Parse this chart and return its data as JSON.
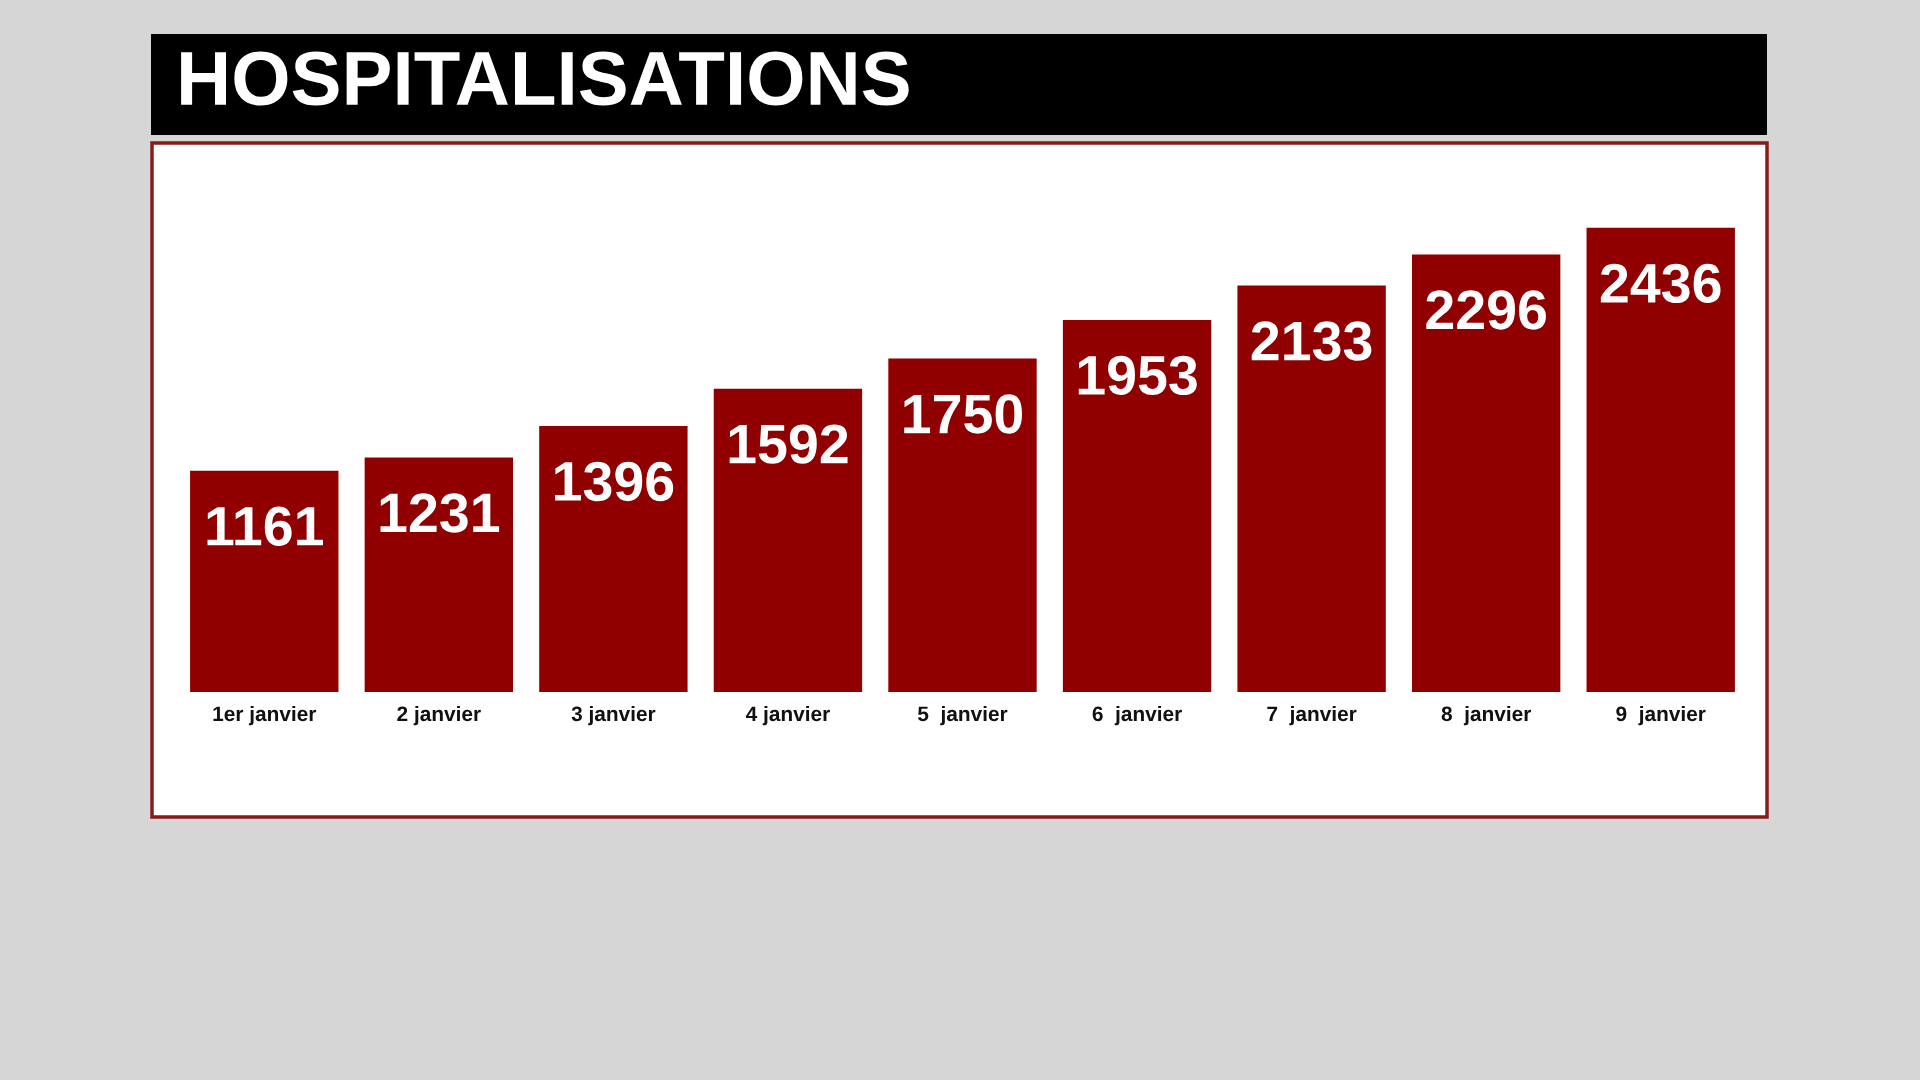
{
  "chart_data": {
    "type": "bar",
    "title": "HOSPITALISATIONS",
    "categories": [
      "1er janvier",
      "2 janvier",
      "3 janvier",
      "4 janvier",
      "5  janvier",
      "6  janvier",
      "7  janvier",
      "8  janvier",
      "9  janvier"
    ],
    "values": [
      1161,
      1231,
      1396,
      1592,
      1750,
      1953,
      2133,
      2296,
      2436
    ],
    "color": "#900000",
    "data_labels": true
  }
}
